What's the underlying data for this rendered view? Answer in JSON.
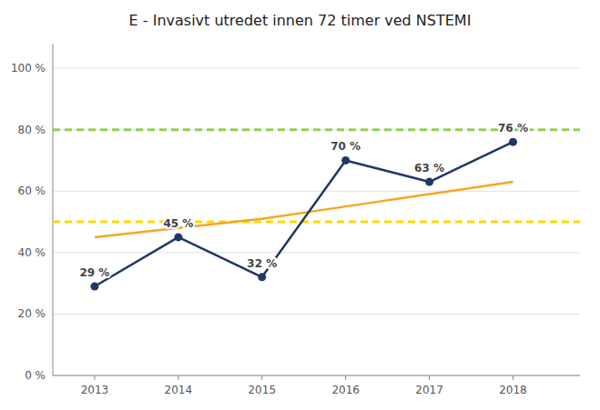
{
  "chart_data": {
    "type": "line",
    "title": "E - Invasivt utredet innen 72 timer ved NSTEMI",
    "x": [
      2013,
      2014,
      2015,
      2016,
      2017,
      2018
    ],
    "xlim": [
      2012.5,
      2018.8
    ],
    "xticks": [
      2013,
      2014,
      2015,
      2016,
      2017,
      2018
    ],
    "ylim": [
      0,
      108
    ],
    "yticks": [
      {
        "value": 0,
        "label": "0 %"
      },
      {
        "value": 20,
        "label": "20 %"
      },
      {
        "value": 40,
        "label": "40 %"
      },
      {
        "value": 60,
        "label": "60 %"
      },
      {
        "value": 80,
        "label": "80 %"
      },
      {
        "value": 100,
        "label": "100 %"
      }
    ],
    "grid": true,
    "series": [
      {
        "color": "#F5A623",
        "values": [
          45,
          48,
          51,
          55,
          59,
          63
        ]
      },
      {
        "color": "#1F3864",
        "marker": "circle",
        "values": [
          29,
          45,
          32,
          70,
          63,
          76
        ],
        "data_labels": true,
        "value_labels": [
          "29 %",
          "45 %",
          "32 %",
          "70 %",
          "63 %",
          "76 %"
        ]
      }
    ],
    "reference_lines": [
      {
        "value": 80,
        "color": "#92D050",
        "line_style": "dashed"
      },
      {
        "value": 50,
        "color": "#FFD700",
        "line_style": "dashed"
      }
    ]
  }
}
